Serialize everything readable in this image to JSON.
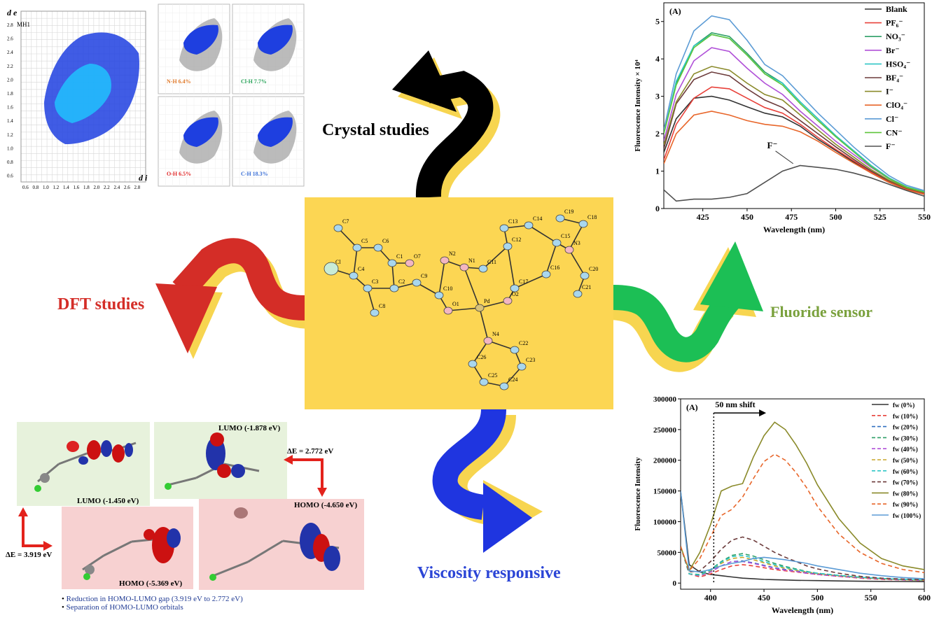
{
  "captions": {
    "crystal": "Crystal studies",
    "dft": "DFT studies",
    "fluoride": "Fluoride sensor",
    "viscosity": "Viscosity responsive"
  },
  "colors": {
    "crystal_arrow": "#000000",
    "dft_arrow": "#d42d27",
    "fluoride_arrow": "#1cbf55",
    "viscosity_arrow": "#1f35e0",
    "arrow_shadow": "#f7d550",
    "center_bg": "#fcd653",
    "dft_text": "#d42d27",
    "fluoride_text": "#7aa13d",
    "viscosity_text": "#2b45d6"
  },
  "hirshfeld": {
    "main_label": "MH1",
    "axis_de": "d e",
    "axis_di": "d i",
    "y_ticks": [
      "2.8",
      "2.6",
      "2.4",
      "2.2",
      "2.0",
      "1.8",
      "1.6",
      "1.4",
      "1.2",
      "1.0",
      "0.8",
      "0.6"
    ],
    "x_ticks": [
      "0.6",
      "0.8",
      "1.0",
      "1.2",
      "1.4",
      "1.6",
      "1.8",
      "2.0",
      "2.2",
      "2.4",
      "2.6",
      "2.8"
    ],
    "panels": [
      {
        "label": "N-H 6.4%",
        "color": "#e07a2b"
      },
      {
        "label": "Cl-H 7.7%",
        "color": "#2aa35a"
      },
      {
        "label": "O-H 6.5%",
        "color": "#e02a2a"
      },
      {
        "label": "C-H 18.3%",
        "color": "#3a6fd6"
      }
    ]
  },
  "crystal_atoms": [
    "C7",
    "C5",
    "C6",
    "C1",
    "O7",
    "N2",
    "N1",
    "C11",
    "C12",
    "C13",
    "C14",
    "C19",
    "C18",
    "C15",
    "N3",
    "C20",
    "C21",
    "C16",
    "C17",
    "O2",
    "C9",
    "C10",
    "O1",
    "Pd",
    "Cl",
    "C4",
    "C3",
    "C2",
    "C8",
    "N4",
    "C22",
    "C23",
    "C24",
    "C25",
    "C26"
  ],
  "orbitals": {
    "lumo1": "LUMO (-1.450 eV)",
    "homo1": "HOMO (-5.369 eV)",
    "lumo2": "LUMO (-1.878 eV)",
    "homo2": "HOMO (-4.650 eV)",
    "gap1": "ΔE = 3.919 eV",
    "gap2": "ΔE = 2.772 eV",
    "bullets": [
      "Reduction in HOMO-LUMO gap (3.919 eV to 2.772 eV)",
      "Separation of HOMO-LUMO orbitals"
    ]
  },
  "chart_data": [
    {
      "type": "line",
      "panel_label": "(A)",
      "xlabel": "Wavelength (nm)",
      "ylabel": "Fluorescence Intensity × 10⁴",
      "xlim": [
        403,
        550
      ],
      "ylim": [
        0,
        5.5
      ],
      "xticks": [
        425,
        450,
        475,
        500,
        525,
        550
      ],
      "yticks": [
        0,
        1,
        2,
        3,
        4,
        5
      ],
      "x": [
        403,
        410,
        420,
        430,
        440,
        450,
        460,
        470,
        480,
        490,
        500,
        510,
        520,
        530,
        540,
        550
      ],
      "annotation": {
        "text": "F⁻",
        "x": 470,
        "y": 1.65
      },
      "legend_position": "top-right",
      "series": [
        {
          "name": "Blank",
          "color": "#333333",
          "values": [
            1.5,
            2.4,
            2.95,
            3.0,
            2.9,
            2.72,
            2.55,
            2.45,
            2.2,
            1.85,
            1.55,
            1.25,
            0.95,
            0.7,
            0.5,
            0.38
          ]
        },
        {
          "name": "PF₆⁻",
          "color": "#e8413a",
          "values": [
            1.3,
            2.25,
            2.95,
            3.25,
            3.2,
            2.95,
            2.7,
            2.55,
            2.25,
            1.9,
            1.58,
            1.28,
            0.98,
            0.72,
            0.52,
            0.4
          ]
        },
        {
          "name": "NO₃⁻",
          "color": "#2e9f67",
          "values": [
            2.0,
            3.35,
            4.35,
            4.7,
            4.6,
            4.15,
            3.65,
            3.35,
            2.85,
            2.4,
            1.95,
            1.55,
            1.15,
            0.82,
            0.58,
            0.45
          ]
        },
        {
          "name": "Br⁻",
          "color": "#b050d8",
          "values": [
            1.8,
            3.05,
            3.95,
            4.3,
            4.2,
            3.75,
            3.35,
            3.05,
            2.6,
            2.2,
            1.8,
            1.45,
            1.1,
            0.8,
            0.56,
            0.44
          ]
        },
        {
          "name": "HSO₄⁻",
          "color": "#2fc6c6",
          "values": [
            2.0,
            3.4,
            4.35,
            4.65,
            4.55,
            4.1,
            3.6,
            3.35,
            2.85,
            2.4,
            1.95,
            1.55,
            1.15,
            0.82,
            0.58,
            0.45
          ]
        },
        {
          "name": "BF₄⁻",
          "color": "#6b3a3a",
          "values": [
            1.6,
            2.8,
            3.45,
            3.65,
            3.55,
            3.2,
            2.9,
            2.7,
            2.35,
            2.0,
            1.65,
            1.32,
            1.0,
            0.74,
            0.54,
            0.42
          ]
        },
        {
          "name": "I⁻",
          "color": "#8a8a2a",
          "values": [
            1.7,
            2.85,
            3.6,
            3.8,
            3.7,
            3.35,
            3.05,
            2.9,
            2.5,
            2.1,
            1.72,
            1.38,
            1.04,
            0.76,
            0.55,
            0.43
          ]
        },
        {
          "name": "ClO₄⁻",
          "color": "#e8662a",
          "values": [
            1.2,
            2.0,
            2.5,
            2.6,
            2.5,
            2.35,
            2.25,
            2.2,
            2.05,
            1.8,
            1.5,
            1.22,
            0.95,
            0.7,
            0.5,
            0.38
          ]
        },
        {
          "name": "Cl⁻",
          "color": "#5b9bd5",
          "values": [
            2.1,
            3.6,
            4.75,
            5.15,
            5.05,
            4.5,
            3.85,
            3.55,
            3.05,
            2.55,
            2.1,
            1.65,
            1.25,
            0.88,
            0.62,
            0.48
          ]
        },
        {
          "name": "CN⁻",
          "color": "#5ec53a",
          "values": [
            2.0,
            3.3,
            4.3,
            4.65,
            4.55,
            4.1,
            3.6,
            3.3,
            2.8,
            2.35,
            1.92,
            1.52,
            1.12,
            0.8,
            0.57,
            0.44
          ]
        },
        {
          "name": "F⁻",
          "color": "#505050",
          "values": [
            0.5,
            0.2,
            0.25,
            0.25,
            0.3,
            0.4,
            0.7,
            1.0,
            1.15,
            1.1,
            1.05,
            0.95,
            0.82,
            0.65,
            0.48,
            0.33
          ]
        }
      ]
    },
    {
      "type": "line",
      "panel_label": "(A)",
      "xlabel": "Wavelength (nm)",
      "ylabel": "Fluorescence Intensity",
      "xlim": [
        372,
        600
      ],
      "ylim": [
        -10000,
        300000
      ],
      "xticks": [
        400,
        450,
        500,
        550,
        600
      ],
      "yticks": [
        0,
        50000,
        100000,
        150000,
        200000,
        250000,
        300000
      ],
      "x": [
        372,
        380,
        390,
        400,
        410,
        420,
        430,
        440,
        450,
        460,
        470,
        480,
        490,
        500,
        520,
        540,
        560,
        580,
        600
      ],
      "annotation": {
        "text": "50 nm shift",
        "x_from": 403,
        "x_to": 452,
        "y": 277000
      },
      "legend_position": "top-right",
      "series": [
        {
          "name": "fw (0%)",
          "dash": false,
          "color": "#333333",
          "values": [
            150000,
            30000,
            18000,
            14000,
            12000,
            10000,
            8000,
            7000,
            6000,
            5500,
            5000,
            4500,
            4200,
            4000,
            3500,
            3000,
            2800,
            2500,
            2300
          ]
        },
        {
          "name": "fw (10%)",
          "dash": true,
          "color": "#e8413a",
          "values": [
            60000,
            15000,
            10000,
            15000,
            22000,
            28000,
            30000,
            28000,
            25000,
            22000,
            20000,
            18000,
            16000,
            14000,
            11000,
            8000,
            6000,
            5000,
            4000
          ]
        },
        {
          "name": "fw (20%)",
          "dash": true,
          "color": "#3070c0",
          "values": [
            60000,
            15000,
            12000,
            18000,
            28000,
            35000,
            36000,
            33000,
            29000,
            25000,
            22000,
            20000,
            17000,
            15000,
            12000,
            9000,
            7000,
            5500,
            4500
          ]
        },
        {
          "name": "fw (30%)",
          "dash": true,
          "color": "#2e9f67",
          "values": [
            60000,
            15000,
            14000,
            22000,
            35000,
            45000,
            48000,
            44000,
            38000,
            32000,
            27000,
            23000,
            19000,
            16000,
            12500,
            9500,
            7500,
            6000,
            5000
          ]
        },
        {
          "name": "fw (40%)",
          "dash": true,
          "color": "#b050d8",
          "values": [
            60000,
            15000,
            12000,
            18000,
            28000,
            35000,
            35000,
            32000,
            28000,
            24000,
            21000,
            19000,
            16000,
            14000,
            11000,
            8500,
            6500,
            5200,
            4200
          ]
        },
        {
          "name": "fw (50%)",
          "dash": true,
          "color": "#c8a62a",
          "values": [
            60000,
            15000,
            13000,
            20000,
            32000,
            40000,
            42000,
            38000,
            33000,
            28000,
            24000,
            21000,
            18000,
            15500,
            12000,
            9000,
            7000,
            5500,
            4500
          ]
        },
        {
          "name": "fw (60%)",
          "dash": true,
          "color": "#2fc6c6",
          "values": [
            60000,
            15000,
            13000,
            21000,
            34000,
            43000,
            45000,
            41000,
            35000,
            30000,
            25500,
            22000,
            18500,
            16000,
            12500,
            9500,
            7500,
            6000,
            5000
          ]
        },
        {
          "name": "fw (70%)",
          "dash": true,
          "color": "#6b3a3a",
          "values": [
            60000,
            18000,
            20000,
            35000,
            55000,
            70000,
            75000,
            70000,
            60000,
            50000,
            42000,
            35000,
            28000,
            23000,
            16000,
            11000,
            8000,
            6500,
            5500
          ]
        },
        {
          "name": "fw (80%)",
          "dash": false,
          "color": "#8a8a2a",
          "values": [
            60000,
            20000,
            50000,
            95000,
            150000,
            158000,
            162000,
            205000,
            240000,
            262000,
            250000,
            225000,
            195000,
            160000,
            105000,
            65000,
            40000,
            28000,
            22000
          ]
        },
        {
          "name": "fw (90%)",
          "dash": true,
          "color": "#e8662a",
          "values": [
            60000,
            20000,
            40000,
            75000,
            110000,
            120000,
            140000,
            170000,
            198000,
            210000,
            200000,
            180000,
            155000,
            125000,
            80000,
            50000,
            32000,
            22000,
            17000
          ]
        },
        {
          "name": "fw (100%)",
          "dash": false,
          "color": "#5b9bd5",
          "values": [
            150000,
            20000,
            18000,
            22000,
            28000,
            32000,
            35000,
            40000,
            42000,
            40000,
            38000,
            35000,
            32000,
            28000,
            22000,
            16000,
            12000,
            9000,
            7000
          ]
        }
      ]
    }
  ]
}
